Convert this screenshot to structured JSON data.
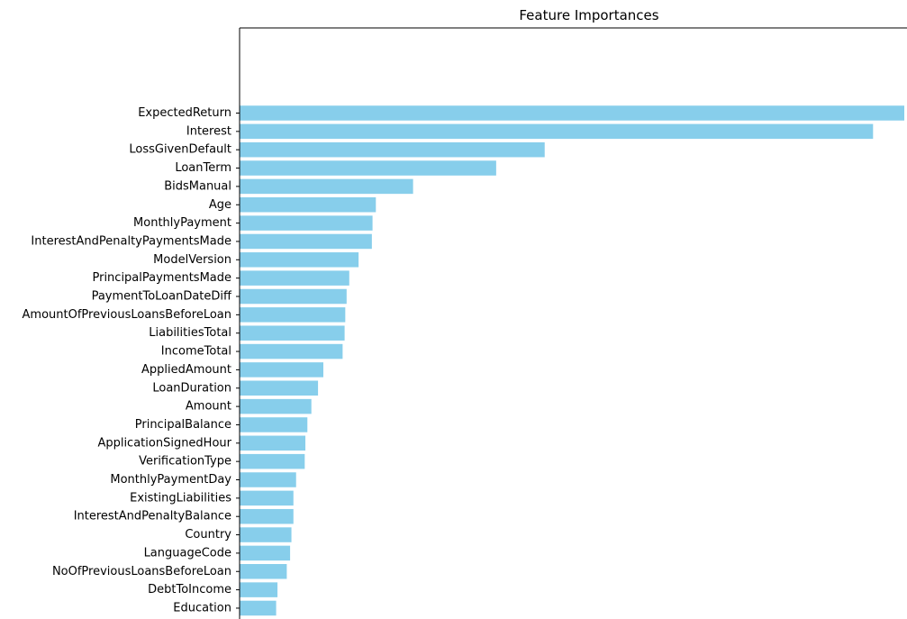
{
  "chart_data": {
    "type": "bar",
    "orientation": "horizontal",
    "title": "Feature Importances",
    "xlabel": "",
    "ylabel": "",
    "bar_color": "#87CEEB",
    "axis_color": "#000000",
    "grid": false,
    "max_value": 1.0,
    "categories": [
      "ExpectedReturn",
      "Interest",
      "LossGivenDefault",
      "LoanTerm",
      "BidsManual",
      "Age",
      "MonthlyPayment",
      "InterestAndPenaltyPaymentsMade",
      "ModelVersion",
      "PrincipalPaymentsMade",
      "PaymentToLoanDateDiff",
      "AmountOfPreviousLoansBeforeLoan",
      "LiabilitiesTotal",
      "IncomeTotal",
      "AppliedAmount",
      "LoanDuration",
      "Amount",
      "PrincipalBalance",
      "ApplicationSignedHour",
      "VerificationType",
      "MonthlyPaymentDay",
      "ExistingLiabilities",
      "InterestAndPenaltyBalance",
      "Country",
      "LanguageCode",
      "NoOfPreviousLoansBeforeLoan",
      "DebtToIncome",
      "Education"
    ],
    "values": [
      1.0,
      0.953,
      0.459,
      0.386,
      0.261,
      0.205,
      0.2,
      0.199,
      0.179,
      0.165,
      0.161,
      0.159,
      0.158,
      0.155,
      0.126,
      0.118,
      0.108,
      0.102,
      0.099,
      0.098,
      0.085,
      0.081,
      0.081,
      0.078,
      0.076,
      0.071,
      0.057,
      0.055
    ]
  }
}
